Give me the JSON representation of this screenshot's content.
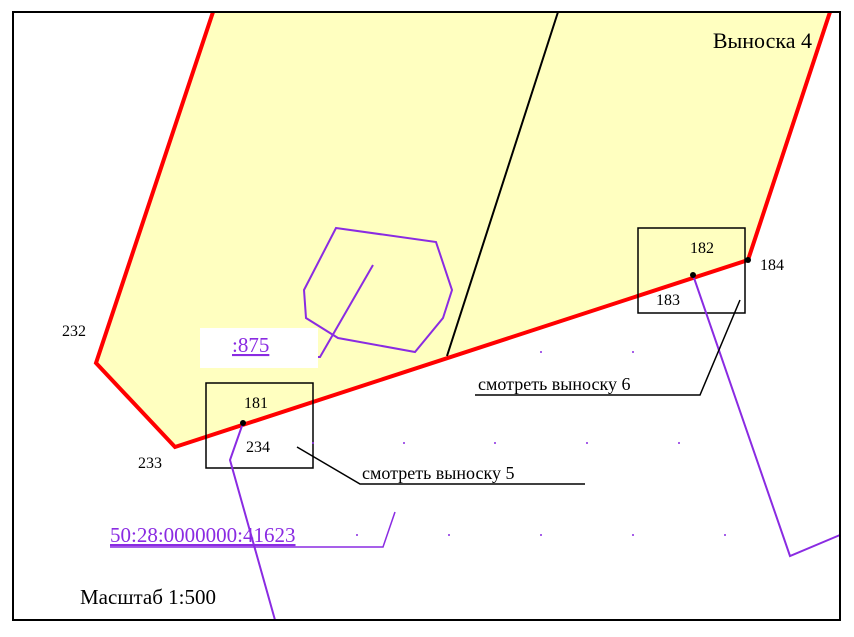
{
  "title": "Выноска 4",
  "scale": "Масштаб 1:500",
  "parcels": [
    ":875",
    "50:28:0000000:41623"
  ],
  "points": [
    "232",
    "233",
    "181",
    "234",
    "182",
    "183",
    "184"
  ],
  "callouts": [
    "смотреть выноску 5",
    "смотреть выноску 6"
  ]
}
